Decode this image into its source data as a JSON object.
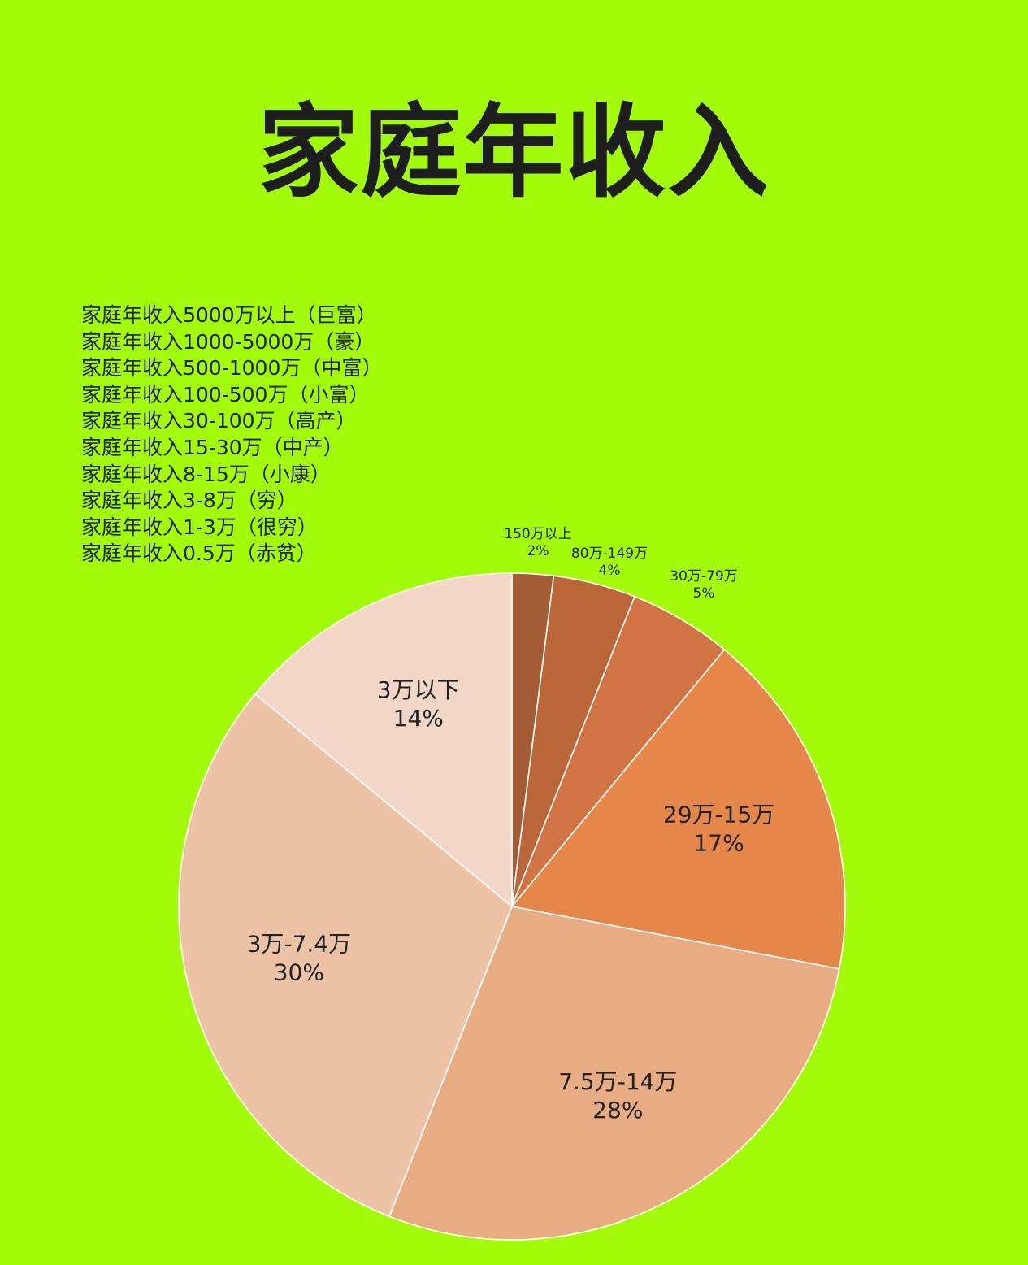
{
  "title": "家庭年收入",
  "tiers": [
    "家庭年收入5000万以上（巨富）",
    "家庭年收入1000-5000万（豪）",
    "家庭年收入500-1000万（中富）",
    "家庭年收入100-500万（小富）",
    "家庭年收入30-100万（高产）",
    "家庭年收入15-30万（中产）",
    "家庭年收入8-15万（小康）",
    "家庭年收入3-8万（穷）",
    "家庭年收入1-3万（很穷）",
    "家庭年收入0.5万（赤贫）"
  ],
  "chart_data": {
    "type": "pie",
    "title": "家庭年收入",
    "start": "12 o'clock, clockwise",
    "slices": [
      {
        "label": "150万以上",
        "value": 2,
        "value_label": "2%",
        "color": "#a45c34",
        "label_placement": "outside"
      },
      {
        "label": "80万-149万",
        "value": 4,
        "value_label": "4%",
        "color": "#ba6638",
        "label_placement": "outside"
      },
      {
        "label": "30万-79万",
        "value": 5,
        "value_label": "5%",
        "color": "#cf7442",
        "label_placement": "outside"
      },
      {
        "label": "29万-15万",
        "value": 17,
        "value_label": "17%",
        "color": "#e6874a",
        "label_placement": "inside"
      },
      {
        "label": "7.5万-14万",
        "value": 28,
        "value_label": "28%",
        "color": "#e8ac83",
        "label_placement": "inside"
      },
      {
        "label": "3万-7.4万",
        "value": 30,
        "value_label": "30%",
        "color": "#edc3a5",
        "label_placement": "inside"
      },
      {
        "label": "3万以下",
        "value": 14,
        "value_label": "14%",
        "color": "#f2d6c6",
        "label_placement": "inside"
      }
    ]
  }
}
